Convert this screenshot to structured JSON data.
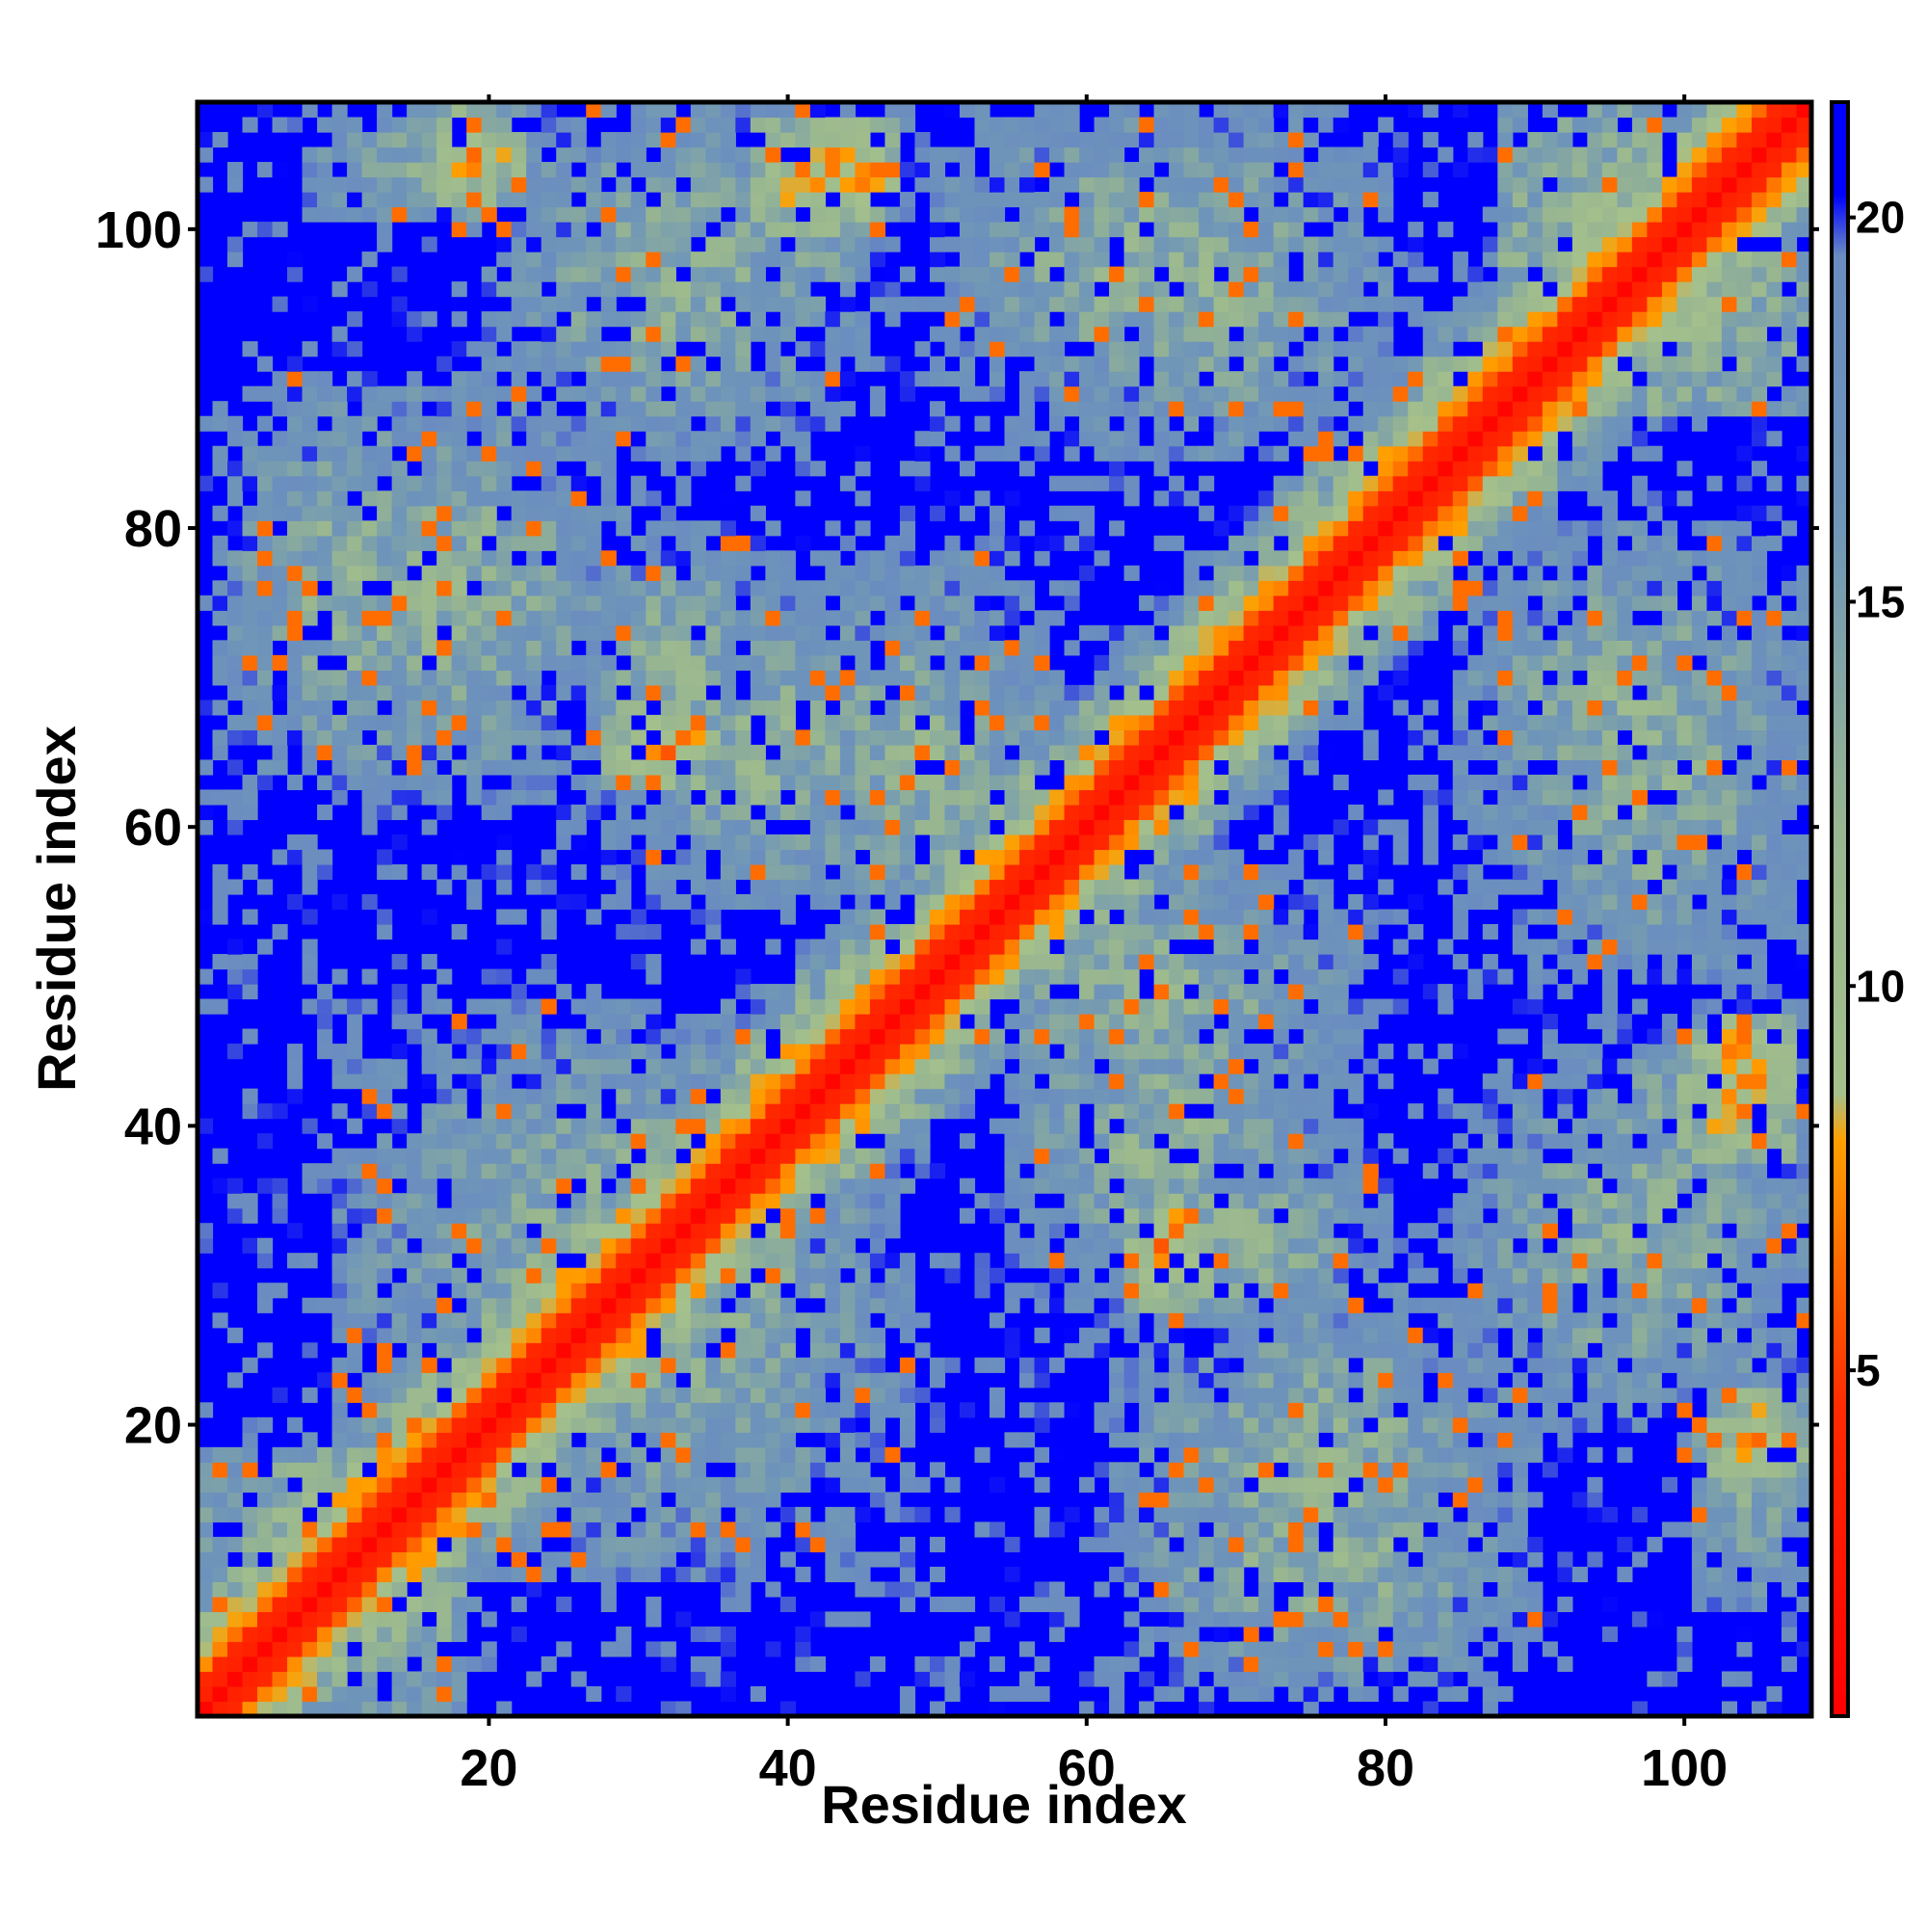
{
  "chart_data": {
    "type": "heatmap",
    "title": "",
    "xlabel": "Residue index",
    "ylabel": "Residue index",
    "n_residues": 108,
    "xlim": [
      0.5,
      108.5
    ],
    "ylim": [
      0.5,
      108.5
    ],
    "xticks": [
      20,
      40,
      60,
      80,
      100
    ],
    "yticks": [
      20,
      40,
      60,
      80,
      100
    ],
    "colorbar": {
      "range": [
        0.5,
        21.5
      ],
      "ticks": [
        5,
        10,
        15,
        20
      ],
      "stops": [
        {
          "value": 0.5,
          "color": "#ff0000"
        },
        {
          "value": 4.5,
          "color": "#ff2a00"
        },
        {
          "value": 8.0,
          "color": "#ffa000"
        },
        {
          "value": 8.6,
          "color": "#a4c08c"
        },
        {
          "value": 12.0,
          "color": "#98b690"
        },
        {
          "value": 16.0,
          "color": "#6f96b8"
        },
        {
          "value": 19.5,
          "color": "#6a8cc0"
        },
        {
          "value": 20.3,
          "color": "#0000ff"
        },
        {
          "value": 21.5,
          "color": "#0000ff"
        }
      ]
    },
    "value_description": "pairwise residue distance map, symmetric about the diagonal",
    "grid": false,
    "contact_regions": [
      {
        "x": [
          1,
          18
        ],
        "y": [
          1,
          18
        ],
        "level": "diagonal-band"
      },
      {
        "x": [
          3,
          30
        ],
        "y": [
          62,
          90
        ],
        "level": "medium"
      },
      {
        "x": [
          20,
          45
        ],
        "y": [
          85,
          108
        ],
        "level": "medium"
      },
      {
        "x": [
          28,
          50
        ],
        "y": [
          55,
          75
        ],
        "level": "medium"
      },
      {
        "x": [
          55,
          80
        ],
        "y": [
          85,
          108
        ],
        "level": "medium"
      },
      {
        "x": [
          60,
          80
        ],
        "y": [
          25,
          40
        ],
        "level": "medium"
      },
      {
        "x": [
          62,
          90
        ],
        "y": [
          2,
          20
        ],
        "level": "medium"
      },
      {
        "x": [
          88,
          108
        ],
        "y": [
          50,
          75
        ],
        "level": "medium"
      },
      {
        "x": [
          95,
          108
        ],
        "y": [
          35,
          48
        ],
        "level": "medium"
      },
      {
        "x": [
          100,
          108
        ],
        "y": [
          8,
          25
        ],
        "level": "medium"
      },
      {
        "x": [
          12,
          48
        ],
        "y": [
          10,
          48
        ],
        "level": "medium"
      },
      {
        "x": [
          52,
          78
        ],
        "y": [
          40,
          58
        ],
        "level": "medium"
      },
      {
        "x": [
          88,
          108
        ],
        "y": [
          88,
          108
        ],
        "level": "diagonal-band"
      },
      {
        "x": [
          30,
          38
        ],
        "y": [
          30,
          40
        ],
        "level": "close"
      },
      {
        "x": [
          63,
          68
        ],
        "y": [
          28,
          35
        ],
        "level": "close"
      },
      {
        "x": [
          38,
          47
        ],
        "y": [
          100,
          107
        ],
        "level": "close"
      },
      {
        "x": [
          100,
          107
        ],
        "y": [
          39,
          45
        ],
        "level": "close"
      },
      {
        "x": [
          102,
          108
        ],
        "y": [
          16,
          22
        ],
        "level": "close"
      }
    ]
  }
}
